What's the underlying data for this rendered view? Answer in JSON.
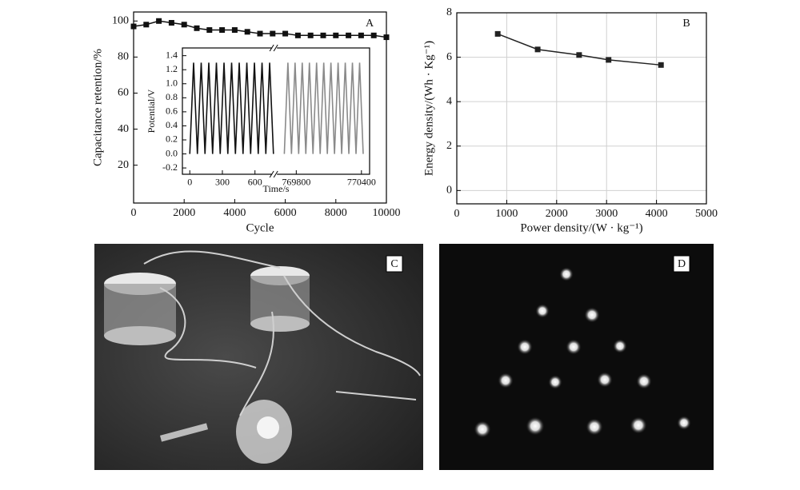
{
  "chart_data": [
    {
      "type": "line",
      "label": "A",
      "xlabel": "Cycle",
      "ylabel": "Capacitance retention/%",
      "x": [
        0,
        500,
        1000,
        1500,
        2000,
        2500,
        3000,
        3500,
        4000,
        4500,
        5000,
        5500,
        6000,
        6500,
        7000,
        7500,
        8000,
        8500,
        9000,
        9500,
        10000
      ],
      "values": [
        97,
        98,
        100,
        99,
        98,
        96,
        95,
        95,
        95,
        94,
        93,
        93,
        93,
        92,
        92,
        92,
        92,
        92,
        92,
        92,
        91
      ],
      "color": "#111111",
      "marker": "square",
      "xlim": [
        0,
        10000
      ],
      "xticks": [
        0,
        2000,
        4000,
        6000,
        8000,
        10000
      ],
      "ylim": [
        -1,
        105
      ],
      "yticks": [
        20,
        40,
        60,
        80,
        100
      ],
      "grid": false
    },
    {
      "type": "line",
      "xlabel": "Time/s",
      "ylabel": "Potential/V",
      "x_break": true,
      "series": [
        {
          "color": "#111111",
          "x": [
            0,
            35,
            70,
            105,
            140,
            175,
            210,
            245,
            280,
            315,
            350,
            385,
            420,
            455,
            490,
            525,
            560,
            595,
            630,
            665,
            700,
            735,
            770
          ],
          "values": [
            0,
            1.3,
            0,
            1.3,
            0,
            1.3,
            0,
            1.3,
            0,
            1.3,
            0,
            1.3,
            0,
            1.3,
            0,
            1.3,
            0,
            1.3,
            0,
            1.3,
            0,
            1.3,
            0
          ]
        },
        {
          "color": "#8a8a8a",
          "x": [
            769690,
            769723,
            769756,
            769789,
            769822,
            769855,
            769888,
            769921,
            769954,
            769987,
            770020,
            770053,
            770086,
            770119,
            770152,
            770185,
            770218,
            770251,
            770284,
            770317,
            770350,
            770383,
            770416
          ],
          "values": [
            0,
            1.3,
            0,
            1.3,
            0,
            1.3,
            0,
            1.3,
            0,
            1.3,
            0,
            1.3,
            0,
            1.3,
            0,
            1.3,
            0,
            1.3,
            0,
            1.3,
            0,
            1.3,
            0
          ]
        }
      ],
      "xlim": [
        [
          -68,
          780
        ],
        [
          769600,
          770475
        ]
      ],
      "xticks": [
        0,
        300,
        600,
        769800,
        770400
      ],
      "ylim": [
        -0.29,
        1.51
      ],
      "yticks": [
        -0.2,
        {
          "value": 0,
          "label": "0.0"
        },
        0.2,
        0.4,
        0.6,
        0.8,
        {
          "value": 1,
          "label": "1.0"
        },
        1.2,
        1.4
      ],
      "grid": false
    },
    {
      "type": "line",
      "label": "B",
      "xlabel": "Power density/(W · kg⁻¹)",
      "ylabel": "Energy density/(Wh · Kg⁻¹)",
      "x": [
        820,
        1620,
        2450,
        3040,
        4090
      ],
      "values": [
        7.05,
        6.35,
        6.1,
        5.88,
        5.65
      ],
      "color": "#222222",
      "marker": "square",
      "xlim": [
        0,
        5000
      ],
      "xticks": [
        0,
        1000,
        2000,
        3000,
        4000,
        5000
      ],
      "ylim": [
        -0.6,
        8
      ],
      "yticks": [
        0,
        2,
        4,
        6,
        8
      ],
      "grid": true
    }
  ],
  "photos": [
    {
      "label": "C"
    },
    {
      "label": "D"
    }
  ]
}
